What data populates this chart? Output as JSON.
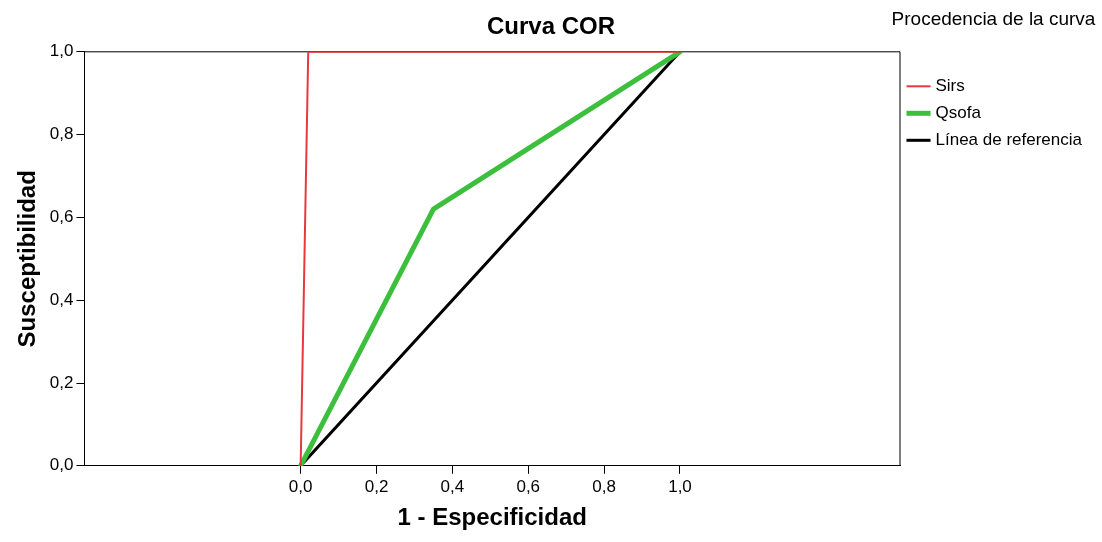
{
  "chart_data": {
    "type": "line",
    "title": "Curva COR",
    "xlabel": "1 - Especificidad",
    "ylabel": "Susceptibilidad",
    "legend_title": "Procedencia de la curva",
    "legend": "right",
    "grid": false,
    "marker": "none",
    "xlim": [
      -0.57,
      1.58
    ],
    "ylim": [
      0,
      1
    ],
    "xticks": [
      {
        "value": 0,
        "label": "0,0"
      },
      {
        "value": 0.2,
        "label": "0,2"
      },
      {
        "value": 0.4,
        "label": "0,4"
      },
      {
        "value": 0.6,
        "label": "0,6"
      },
      {
        "value": 0.8,
        "label": "0,8"
      },
      {
        "value": 1,
        "label": "1,0"
      }
    ],
    "yticks": [
      {
        "value": 0,
        "label": "0,0"
      },
      {
        "value": 0.2,
        "label": "0,2"
      },
      {
        "value": 0.4,
        "label": "0,4"
      },
      {
        "value": 0.6,
        "label": "0,6"
      },
      {
        "value": 0.8,
        "label": "0,8"
      },
      {
        "value": 1,
        "label": "1,0"
      }
    ],
    "series": [
      {
        "name": "Sirs",
        "color": "#e8383d",
        "x": [
          0,
          0.02,
          1
        ],
        "values": [
          0,
          1,
          1
        ]
      },
      {
        "name": "Qsofa",
        "color": "#3cbf3c",
        "x": [
          0,
          0.35,
          1
        ],
        "values": [
          0,
          0.62,
          1
        ]
      },
      {
        "name": "Línea de referencia",
        "color": "#000000",
        "x": [
          0,
          1
        ],
        "values": [
          0,
          1
        ]
      }
    ]
  }
}
